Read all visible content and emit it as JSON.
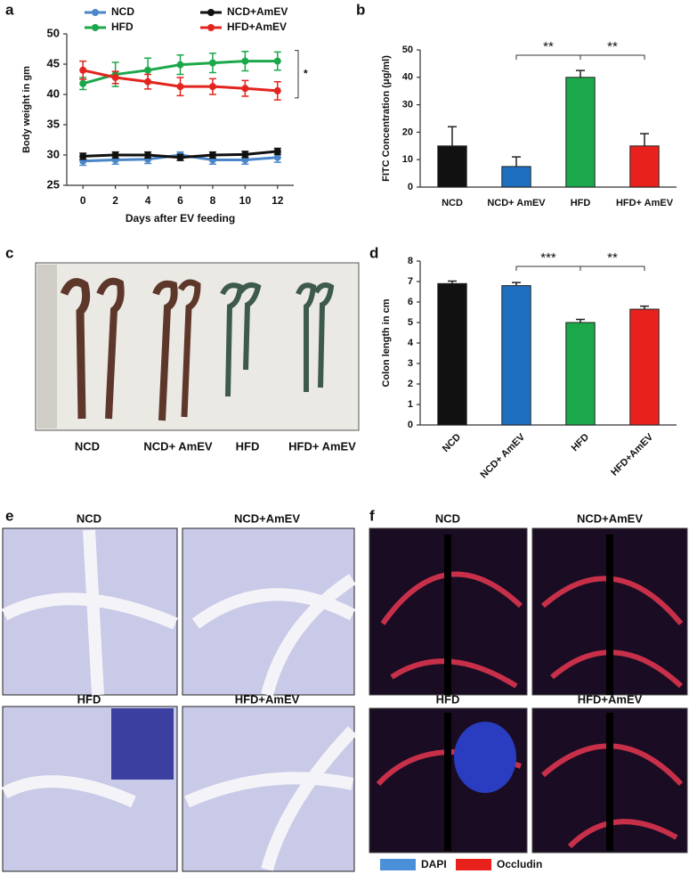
{
  "chart_data": [
    {
      "type": "line",
      "panel": "a",
      "ylabel": "Body weight in gm",
      "xlabel": "Days after EV feeding",
      "x": [
        0,
        2,
        4,
        6,
        8,
        10,
        12
      ],
      "xlim": [
        -1,
        13
      ],
      "xticks": [
        0,
        2,
        4,
        6,
        8,
        10,
        12
      ],
      "ylim": [
        25,
        50
      ],
      "yticks": [
        25,
        30,
        35,
        40,
        45,
        50
      ],
      "series": [
        {
          "name": "NCD",
          "color": "#4a86c8",
          "values": [
            29,
            29.2,
            29.3,
            30,
            29.2,
            29.2,
            29.6
          ],
          "errors": [
            0.7,
            0.7,
            0.7,
            0.5,
            0.7,
            0.7,
            0.8
          ]
        },
        {
          "name": "NCD+AmEV",
          "color": "#111111",
          "values": [
            29.8,
            30,
            30,
            29.6,
            30,
            30.1,
            30.6
          ],
          "errors": [
            0.5,
            0.5,
            0.5,
            0.5,
            0.5,
            0.5,
            0.5
          ]
        },
        {
          "name": "HFD",
          "color": "#1aa84a",
          "values": [
            41.8,
            43.3,
            44,
            44.9,
            45.2,
            45.5,
            45.5
          ],
          "errors": [
            1.0,
            2.0,
            2.0,
            1.6,
            1.6,
            1.6,
            1.5
          ]
        },
        {
          "name": "HFD+AmEV",
          "color": "#e3241f",
          "values": [
            44,
            42.8,
            42.1,
            41.3,
            41.3,
            41,
            40.6
          ],
          "errors": [
            1.5,
            1.0,
            1.2,
            1.5,
            1.3,
            1.3,
            1.5
          ]
        }
      ],
      "significance": [
        {
          "between": [
            "HFD",
            "HFD+AmEV"
          ],
          "label": "*"
        }
      ]
    },
    {
      "type": "bar",
      "panel": "b",
      "ylabel": "FITC Concentration (μg/ml)",
      "categories": [
        "NCD",
        "NCD+ AmEV",
        "HFD",
        "HFD+ AmEV"
      ],
      "values": [
        15,
        7.5,
        40,
        15
      ],
      "errors": [
        7,
        3.5,
        2.5,
        4.5
      ],
      "colors": [
        "#111111",
        "#1f6fc0",
        "#1aa84a",
        "#e8211c"
      ],
      "ylim": [
        0,
        50
      ],
      "yticks": [
        0,
        10,
        20,
        30,
        40,
        50
      ],
      "significance": [
        {
          "between": [
            "NCD+ AmEV",
            "HFD"
          ],
          "label": "**"
        },
        {
          "between": [
            "HFD",
            "HFD+ AmEV"
          ],
          "label": "**"
        }
      ]
    },
    {
      "type": "bar",
      "panel": "d",
      "ylabel": "Colon length in cm",
      "categories": [
        "NCD",
        "NCD+ AmEV",
        "HFD",
        "HFD+AmEV"
      ],
      "values": [
        6.9,
        6.8,
        5.0,
        5.65
      ],
      "errors": [
        0.12,
        0.15,
        0.15,
        0.15
      ],
      "colors": [
        "#111111",
        "#1f6fc0",
        "#1aa84a",
        "#e8211c"
      ],
      "ylim": [
        0,
        8
      ],
      "yticks": [
        0,
        1,
        2,
        3,
        4,
        5,
        6,
        7,
        8
      ],
      "significance": [
        {
          "between": [
            "NCD+ AmEV",
            "HFD"
          ],
          "label": "***"
        },
        {
          "between": [
            "HFD",
            "HFD+AmEV"
          ],
          "label": "**"
        }
      ]
    }
  ],
  "images": [
    {
      "panel": "c",
      "labels": [
        "NCD",
        "NCD+ AmEV",
        "HFD",
        "HFD+ AmEV"
      ]
    },
    {
      "panel": "e",
      "labels": [
        "NCD",
        "NCD+AmEV",
        "HFD",
        "HFD+AmEV"
      ]
    },
    {
      "panel": "f",
      "labels": [
        "NCD",
        "NCD+AmEV",
        "HFD",
        "HFD+AmEV"
      ],
      "legend": [
        {
          "name": "DAPI",
          "color": "#4a90d9"
        },
        {
          "name": "Occludin",
          "color": "#e8211c"
        }
      ]
    }
  ]
}
